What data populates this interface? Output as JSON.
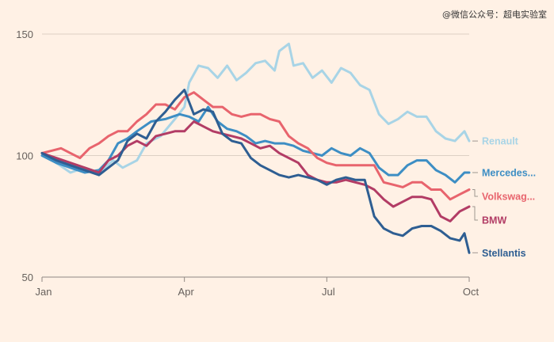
{
  "watermark": "@微信公众号：超电实验室",
  "chart_data": {
    "type": "line",
    "ylim": [
      50,
      150
    ],
    "yticks": [
      50,
      100,
      150
    ],
    "xlim": [
      0,
      9
    ],
    "xticks": [
      {
        "x": 0,
        "label": "Jan"
      },
      {
        "x": 3,
        "label": "Apr"
      },
      {
        "x": 6,
        "label": "Jul"
      },
      {
        "x": 9,
        "label": "Oct"
      }
    ],
    "grid": true,
    "legend": "end-of-line labels, right",
    "series": [
      {
        "name": "Renault",
        "color": "#a8d4e6",
        "points": [
          [
            0,
            101
          ],
          [
            0.3,
            97
          ],
          [
            0.6,
            93
          ],
          [
            0.9,
            95
          ],
          [
            1.2,
            93
          ],
          [
            1.5,
            98
          ],
          [
            1.7,
            95
          ],
          [
            2.0,
            98
          ],
          [
            2.2,
            105
          ],
          [
            2.5,
            108
          ],
          [
            2.8,
            115
          ],
          [
            3.0,
            120
          ],
          [
            3.1,
            130
          ],
          [
            3.3,
            137
          ],
          [
            3.5,
            136
          ],
          [
            3.7,
            132
          ],
          [
            3.9,
            137
          ],
          [
            4.1,
            131
          ],
          [
            4.3,
            134
          ],
          [
            4.5,
            138
          ],
          [
            4.7,
            139
          ],
          [
            4.9,
            135
          ],
          [
            5.0,
            143
          ],
          [
            5.2,
            146
          ],
          [
            5.3,
            137
          ],
          [
            5.5,
            138
          ],
          [
            5.7,
            132
          ],
          [
            5.9,
            135
          ],
          [
            6.1,
            130
          ],
          [
            6.3,
            136
          ],
          [
            6.5,
            134
          ],
          [
            6.7,
            129
          ],
          [
            6.9,
            127
          ],
          [
            7.1,
            117
          ],
          [
            7.3,
            113
          ],
          [
            7.5,
            115
          ],
          [
            7.7,
            118
          ],
          [
            7.9,
            116
          ],
          [
            8.1,
            116
          ],
          [
            8.3,
            110
          ],
          [
            8.5,
            107
          ],
          [
            8.7,
            106
          ],
          [
            8.9,
            110
          ],
          [
            9.0,
            106
          ]
        ]
      },
      {
        "name": "Mercedes...",
        "color": "#3d8ec4",
        "points": [
          [
            0,
            100
          ],
          [
            0.3,
            97
          ],
          [
            0.6,
            95
          ],
          [
            0.9,
            93
          ],
          [
            1.2,
            94
          ],
          [
            1.4,
            98
          ],
          [
            1.6,
            105
          ],
          [
            1.8,
            107
          ],
          [
            2.0,
            110
          ],
          [
            2.3,
            114
          ],
          [
            2.6,
            115
          ],
          [
            2.9,
            117
          ],
          [
            3.1,
            116
          ],
          [
            3.3,
            114
          ],
          [
            3.5,
            120
          ],
          [
            3.7,
            114
          ],
          [
            3.9,
            111
          ],
          [
            4.1,
            110
          ],
          [
            4.3,
            108
          ],
          [
            4.5,
            105
          ],
          [
            4.7,
            106
          ],
          [
            4.9,
            105
          ],
          [
            5.1,
            105
          ],
          [
            5.3,
            104
          ],
          [
            5.5,
            102
          ],
          [
            5.7,
            101
          ],
          [
            5.9,
            100
          ],
          [
            6.1,
            103
          ],
          [
            6.3,
            101
          ],
          [
            6.5,
            100
          ],
          [
            6.7,
            103
          ],
          [
            6.9,
            101
          ],
          [
            7.1,
            95
          ],
          [
            7.3,
            92
          ],
          [
            7.5,
            92
          ],
          [
            7.7,
            96
          ],
          [
            7.9,
            98
          ],
          [
            8.1,
            98
          ],
          [
            8.3,
            94
          ],
          [
            8.5,
            92
          ],
          [
            8.7,
            89
          ],
          [
            8.9,
            93
          ],
          [
            9.0,
            93
          ]
        ]
      },
      {
        "name": "Volkswag...",
        "color": "#e8646d",
        "points": [
          [
            0,
            101
          ],
          [
            0.2,
            102
          ],
          [
            0.4,
            103
          ],
          [
            0.6,
            101
          ],
          [
            0.8,
            99
          ],
          [
            1.0,
            103
          ],
          [
            1.2,
            105
          ],
          [
            1.4,
            108
          ],
          [
            1.6,
            110
          ],
          [
            1.8,
            110
          ],
          [
            2.0,
            114
          ],
          [
            2.2,
            117
          ],
          [
            2.4,
            121
          ],
          [
            2.6,
            121
          ],
          [
            2.8,
            119
          ],
          [
            3.0,
            124
          ],
          [
            3.2,
            126
          ],
          [
            3.4,
            123
          ],
          [
            3.6,
            120
          ],
          [
            3.8,
            120
          ],
          [
            4.0,
            117
          ],
          [
            4.2,
            116
          ],
          [
            4.4,
            117
          ],
          [
            4.6,
            117
          ],
          [
            4.8,
            115
          ],
          [
            5.0,
            114
          ],
          [
            5.2,
            108
          ],
          [
            5.4,
            105
          ],
          [
            5.6,
            103
          ],
          [
            5.8,
            99
          ],
          [
            6.0,
            97
          ],
          [
            6.2,
            96
          ],
          [
            6.4,
            96
          ],
          [
            6.6,
            96
          ],
          [
            6.8,
            96
          ],
          [
            7.0,
            96
          ],
          [
            7.2,
            89
          ],
          [
            7.4,
            88
          ],
          [
            7.6,
            87
          ],
          [
            7.8,
            89
          ],
          [
            8.0,
            89
          ],
          [
            8.2,
            86
          ],
          [
            8.4,
            86
          ],
          [
            8.6,
            82
          ],
          [
            8.8,
            84
          ],
          [
            9.0,
            86
          ]
        ]
      },
      {
        "name": "BMW",
        "color": "#b23c65",
        "points": [
          [
            0,
            101
          ],
          [
            0.3,
            99
          ],
          [
            0.6,
            97
          ],
          [
            0.9,
            95
          ],
          [
            1.2,
            93
          ],
          [
            1.4,
            98
          ],
          [
            1.6,
            100
          ],
          [
            1.8,
            104
          ],
          [
            2.0,
            106
          ],
          [
            2.2,
            104
          ],
          [
            2.4,
            108
          ],
          [
            2.6,
            109
          ],
          [
            2.8,
            110
          ],
          [
            3.0,
            110
          ],
          [
            3.2,
            114
          ],
          [
            3.4,
            112
          ],
          [
            3.6,
            110
          ],
          [
            3.8,
            109
          ],
          [
            4.0,
            108
          ],
          [
            4.2,
            107
          ],
          [
            4.4,
            105
          ],
          [
            4.6,
            103
          ],
          [
            4.8,
            104
          ],
          [
            5.0,
            101
          ],
          [
            5.2,
            99
          ],
          [
            5.4,
            97
          ],
          [
            5.6,
            92
          ],
          [
            5.8,
            90
          ],
          [
            6.0,
            89
          ],
          [
            6.2,
            89
          ],
          [
            6.4,
            90
          ],
          [
            6.6,
            89
          ],
          [
            6.8,
            88
          ],
          [
            7.0,
            86
          ],
          [
            7.2,
            82
          ],
          [
            7.4,
            79
          ],
          [
            7.6,
            81
          ],
          [
            7.8,
            83
          ],
          [
            8.0,
            83
          ],
          [
            8.2,
            82
          ],
          [
            8.4,
            75
          ],
          [
            8.6,
            73
          ],
          [
            8.8,
            77
          ],
          [
            9.0,
            79
          ]
        ]
      },
      {
        "name": "Stellantis",
        "color": "#2e5e92",
        "points": [
          [
            0,
            101
          ],
          [
            0.3,
            98
          ],
          [
            0.6,
            96
          ],
          [
            0.9,
            94
          ],
          [
            1.2,
            92
          ],
          [
            1.4,
            95
          ],
          [
            1.6,
            98
          ],
          [
            1.8,
            106
          ],
          [
            2.0,
            109
          ],
          [
            2.2,
            107
          ],
          [
            2.4,
            114
          ],
          [
            2.6,
            118
          ],
          [
            2.8,
            123
          ],
          [
            3.0,
            127
          ],
          [
            3.2,
            117
          ],
          [
            3.4,
            119
          ],
          [
            3.6,
            118
          ],
          [
            3.8,
            109
          ],
          [
            4.0,
            106
          ],
          [
            4.2,
            105
          ],
          [
            4.4,
            99
          ],
          [
            4.6,
            96
          ],
          [
            4.8,
            94
          ],
          [
            5.0,
            92
          ],
          [
            5.2,
            91
          ],
          [
            5.4,
            92
          ],
          [
            5.6,
            91
          ],
          [
            5.8,
            90
          ],
          [
            6.0,
            88
          ],
          [
            6.2,
            90
          ],
          [
            6.4,
            91
          ],
          [
            6.6,
            90
          ],
          [
            6.8,
            90
          ],
          [
            7.0,
            75
          ],
          [
            7.2,
            70
          ],
          [
            7.4,
            68
          ],
          [
            7.6,
            67
          ],
          [
            7.8,
            70
          ],
          [
            8.0,
            71
          ],
          [
            8.2,
            71
          ],
          [
            8.4,
            69
          ],
          [
            8.6,
            66
          ],
          [
            8.8,
            65
          ],
          [
            8.9,
            68
          ],
          [
            9.0,
            60
          ]
        ]
      }
    ]
  }
}
